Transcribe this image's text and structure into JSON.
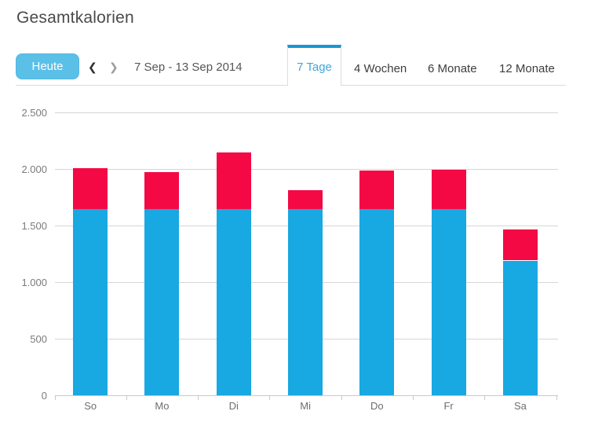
{
  "header": {
    "title": "Gesamtkalorien"
  },
  "toolbar": {
    "today_label": "Heute",
    "prev_icon": "❮",
    "next_icon": "❯",
    "date_range": "7 Sep - 13 Sep 2014"
  },
  "tabs": {
    "items": [
      {
        "label": "7 Tage",
        "active": true
      },
      {
        "label": "4 Wochen",
        "active": false
      },
      {
        "label": "6 Monate",
        "active": false
      },
      {
        "label": "12 Monate",
        "active": false
      }
    ]
  },
  "colors": {
    "today_button_bg": "#5bc0e8",
    "tab_active_border": "#1897d4",
    "tab_active_text": "#42a5d9",
    "bar_blue": "#18a8e2",
    "bar_red": "#f40945",
    "gridline": "#d6d6d6"
  },
  "chart_data": {
    "type": "bar",
    "stacked": true,
    "title": "Gesamtkalorien",
    "categories": [
      "So",
      "Mo",
      "Di",
      "Mi",
      "Do",
      "Fr",
      "Sa"
    ],
    "series": [
      {
        "name": "blue_segment",
        "color": "#18a8e2",
        "values": [
          1650,
          1650,
          1650,
          1650,
          1650,
          1650,
          1195
        ]
      },
      {
        "name": "red_segment",
        "color": "#f40945",
        "values": [
          365,
          330,
          500,
          165,
          340,
          350,
          275
        ]
      }
    ],
    "totals": [
      2015,
      1980,
      2150,
      1815,
      1990,
      2000,
      1470
    ],
    "xlabel": "",
    "ylabel": "",
    "ylim": [
      0,
      2500
    ],
    "yticks": [
      0,
      500,
      1000,
      1500,
      2000,
      2500
    ],
    "ytick_labels": [
      "0",
      "500",
      "1.000",
      "1.500",
      "2.000",
      "2.500"
    ],
    "grid": true,
    "legend": "none"
  }
}
